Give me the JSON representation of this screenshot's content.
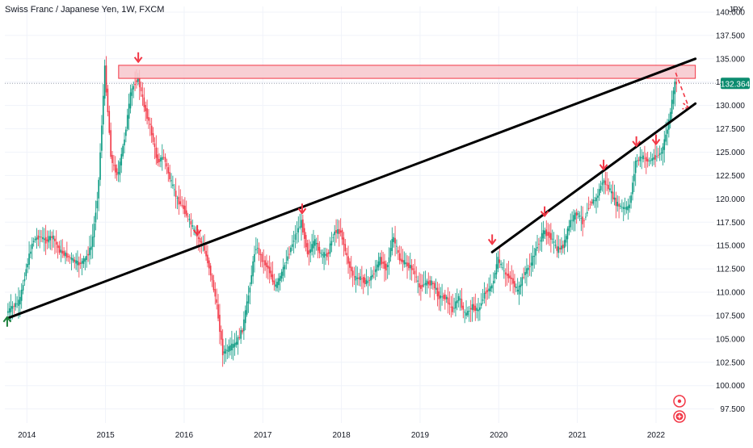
{
  "header": {
    "symbol_title": "Swiss Franc / Japanese Yen, 1W, FXCM"
  },
  "chart_data": {
    "type": "candlestick",
    "title": "Swiss Franc / Japanese Yen, 1W, FXCM",
    "y_unit": "JPY",
    "ylim": [
      96.0,
      140.6
    ],
    "y_ticks": [
      "97.500",
      "100.000",
      "102.500",
      "105.000",
      "107.500",
      "110.000",
      "112.500",
      "115.000",
      "117.500",
      "120.000",
      "122.500",
      "125.000",
      "127.500",
      "130.000",
      "132.500",
      "135.000",
      "137.500",
      "140.000"
    ],
    "x_ticks": [
      "2014",
      "2015",
      "2016",
      "2017",
      "2018",
      "2019",
      "2020",
      "2021",
      "2022"
    ],
    "last_price": "132.364",
    "price_path": [
      [
        "2013-10",
        107.8
      ],
      [
        "2013-11",
        108.5
      ],
      [
        "2013-12",
        109.0
      ],
      [
        "2014-01",
        112.5
      ],
      [
        "2014-02",
        115.5
      ],
      [
        "2014-03",
        116.0
      ],
      [
        "2014-04",
        115.5
      ],
      [
        "2014-05",
        116.0
      ],
      [
        "2014-06",
        114.5
      ],
      [
        "2014-07",
        114.0
      ],
      [
        "2014-08",
        113.5
      ],
      [
        "2014-09",
        113.0
      ],
      [
        "2014-10",
        113.5
      ],
      [
        "2014-11",
        115.0
      ],
      [
        "2014-12",
        121.0
      ],
      [
        "2015-01",
        134.0
      ],
      [
        "2015-02",
        124.0
      ],
      [
        "2015-03",
        122.5
      ],
      [
        "2015-04",
        126.5
      ],
      [
        "2015-05",
        131.5
      ],
      [
        "2015-06",
        133.0
      ],
      [
        "2015-07",
        130.0
      ],
      [
        "2015-08",
        127.5
      ],
      [
        "2015-09",
        124.0
      ],
      [
        "2015-10",
        124.5
      ],
      [
        "2015-11",
        122.0
      ],
      [
        "2015-12",
        120.0
      ],
      [
        "2016-01",
        119.0
      ],
      [
        "2016-02",
        117.5
      ],
      [
        "2016-03",
        116.0
      ],
      [
        "2016-04",
        115.0
      ],
      [
        "2016-05",
        112.5
      ],
      [
        "2016-06",
        109.0
      ],
      [
        "2016-07",
        103.5
      ],
      [
        "2016-08",
        104.0
      ],
      [
        "2016-09",
        104.5
      ],
      [
        "2016-10",
        106.0
      ],
      [
        "2016-11",
        110.0
      ],
      [
        "2016-12",
        115.0
      ],
      [
        "2017-01",
        113.5
      ],
      [
        "2017-02",
        112.5
      ],
      [
        "2017-03",
        110.5
      ],
      [
        "2017-04",
        112.0
      ],
      [
        "2017-05",
        114.0
      ],
      [
        "2017-06",
        116.0
      ],
      [
        "2017-07",
        117.5
      ],
      [
        "2017-08",
        114.0
      ],
      [
        "2017-09",
        115.5
      ],
      [
        "2017-10",
        114.0
      ],
      [
        "2017-11",
        114.0
      ],
      [
        "2017-12",
        116.5
      ],
      [
        "2018-01",
        116.5
      ],
      [
        "2018-02",
        113.5
      ],
      [
        "2018-03",
        111.5
      ],
      [
        "2018-04",
        111.5
      ],
      [
        "2018-05",
        111.0
      ],
      [
        "2018-06",
        112.0
      ],
      [
        "2018-07",
        113.5
      ],
      [
        "2018-08",
        112.5
      ],
      [
        "2018-09",
        116.0
      ],
      [
        "2018-10",
        113.5
      ],
      [
        "2018-11",
        113.0
      ],
      [
        "2018-12",
        112.5
      ],
      [
        "2019-01",
        110.5
      ],
      [
        "2019-02",
        111.0
      ],
      [
        "2019-03",
        111.0
      ],
      [
        "2019-04",
        109.5
      ],
      [
        "2019-05",
        109.5
      ],
      [
        "2019-06",
        108.0
      ],
      [
        "2019-07",
        109.5
      ],
      [
        "2019-08",
        107.5
      ],
      [
        "2019-09",
        108.5
      ],
      [
        "2019-10",
        108.0
      ],
      [
        "2019-11",
        110.0
      ],
      [
        "2019-12",
        110.5
      ],
      [
        "2020-01",
        113.5
      ],
      [
        "2020-02",
        112.0
      ],
      [
        "2020-03",
        111.5
      ],
      [
        "2020-04",
        110.0
      ],
      [
        "2020-05",
        112.0
      ],
      [
        "2020-06",
        113.0
      ],
      [
        "2020-07",
        115.0
      ],
      [
        "2020-08",
        116.5
      ],
      [
        "2020-09",
        116.0
      ],
      [
        "2020-10",
        114.5
      ],
      [
        "2020-11",
        115.0
      ],
      [
        "2020-12",
        117.5
      ],
      [
        "2021-01",
        118.5
      ],
      [
        "2021-02",
        117.5
      ],
      [
        "2021-03",
        119.5
      ],
      [
        "2021-04",
        120.0
      ],
      [
        "2021-05",
        122.0
      ],
      [
        "2021-06",
        121.0
      ],
      [
        "2021-07",
        119.5
      ],
      [
        "2021-08",
        119.0
      ],
      [
        "2021-09",
        119.0
      ],
      [
        "2021-10",
        124.0
      ],
      [
        "2021-11",
        124.5
      ],
      [
        "2021-12",
        124.0
      ],
      [
        "2022-01",
        124.5
      ],
      [
        "2022-02",
        125.0
      ],
      [
        "2022-03",
        128.0
      ],
      [
        "2022-04",
        132.4
      ]
    ],
    "resistance_zone": {
      "from": 132.9,
      "to": 134.3,
      "start": "2015-03",
      "end": "2022-07"
    },
    "trendlines": [
      {
        "from": [
          "2013-10",
          107.2
        ],
        "to": [
          "2022-07",
          135.0
        ]
      },
      {
        "from": [
          "2019-12",
          114.3
        ],
        "to": [
          "2022-07",
          130.2
        ]
      }
    ],
    "projection": {
      "from": [
        "2022-04",
        133.5
      ],
      "to": [
        "2022-06",
        129.8
      ]
    },
    "markers": [
      {
        "type": "up-arrow",
        "date": "2013-10",
        "price": 107.0
      },
      {
        "type": "down-arrow",
        "date": "2015-06",
        "price": 135.0
      },
      {
        "type": "down-arrow",
        "date": "2016-03",
        "price": 116.5
      },
      {
        "type": "down-arrow",
        "date": "2017-07",
        "price": 118.8
      },
      {
        "type": "down-arrow",
        "date": "2019-12",
        "price": 115.5
      },
      {
        "type": "down-arrow",
        "date": "2020-08",
        "price": 118.5
      },
      {
        "type": "down-arrow",
        "date": "2021-05",
        "price": 123.5
      },
      {
        "type": "down-arrow",
        "date": "2021-10",
        "price": 126.0
      },
      {
        "type": "down-arrow",
        "date": "2022-01",
        "price": 126.2
      }
    ],
    "colors": {
      "up": "#089981",
      "down": "#F23645",
      "zone_fill": "#F7C7CC",
      "zone_border": "#F23645",
      "trendline": "#000000",
      "up_marker": "#1B7F3B",
      "price_tag": "#0B8C6F",
      "grid": "#F0F3FA"
    }
  },
  "icons": {
    "bottom_right": [
      "target-icon",
      "plus-circle-icon"
    ]
  }
}
